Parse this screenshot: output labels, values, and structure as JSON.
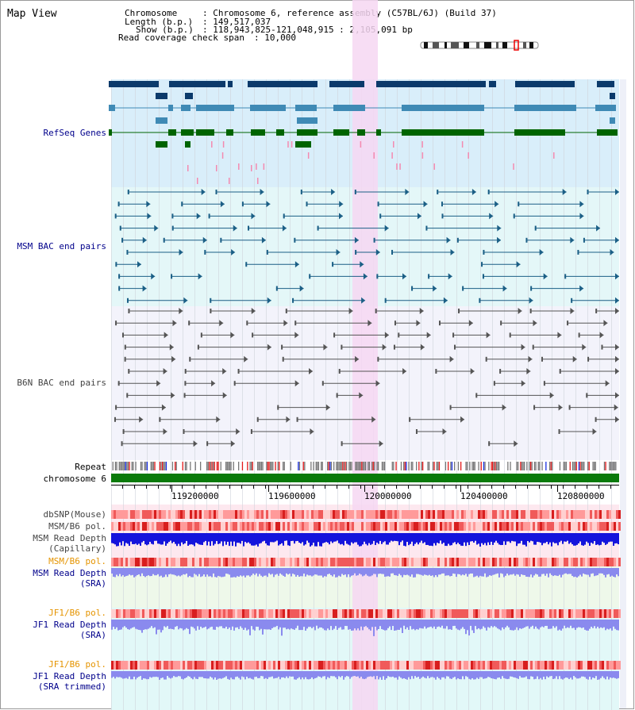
{
  "page": {
    "title": "Map View"
  },
  "header": {
    "chromosome_key": "Chromosome",
    "chromosome_value": ": Chromosome 6, reference assembly (C57BL/6J) (Build 37)",
    "length_key": "Length (b.p.)",
    "length_value": ": 149,517,037",
    "show_key": "Show (b.p.)",
    "show_value": ": 118,943,825-121,048,915 : 2,105,091 bp",
    "coverage_key": "Read coverage check span",
    "coverage_value": ": 10,000"
  },
  "tracks": {
    "refseq": {
      "label": "RefSeq Genes",
      "color": "#00008b"
    },
    "msm_bac": {
      "label": "MSM BAC end pairs",
      "color": "#00008b"
    },
    "b6n_bac": {
      "label": "B6N BAC end pairs",
      "color": "#444444"
    },
    "repeat": {
      "label": "Repeat",
      "color": "#000000"
    },
    "chromosome": {
      "label": "chromosome 6",
      "color": "#000000"
    },
    "dbsnp": {
      "label": "dbSNP(Mouse)",
      "color": "#444444"
    },
    "msm_b6_pol": {
      "label": "MSM/B6 pol.",
      "color": "#444444"
    },
    "msm_depth_cap": {
      "label1": "MSM Read Depth",
      "label2": "(Capillary)",
      "color": "#444444"
    },
    "msm_b6_pol_sra": {
      "label": "MSM/B6 pol.",
      "color": "#e59400"
    },
    "msm_depth_sra": {
      "label1": "MSM Read Depth",
      "label2": "(SRA)",
      "color": "#00008b"
    },
    "jf1_b6_pol": {
      "label": "JF1/B6 pol.",
      "color": "#e59400"
    },
    "jf1_depth_sra": {
      "label1": "JF1 Read Depth",
      "label2": "(SRA)",
      "color": "#00008b"
    },
    "jf1_b6_pol_2": {
      "label": "JF1/B6 pol.",
      "color": "#e59400"
    },
    "jf1_depth_trim": {
      "label1": "JF1 Read Depth",
      "label2": "(SRA trimmed)",
      "color": "#00008b"
    }
  },
  "axis": {
    "ticks": [
      "119200000",
      "119600000",
      "120000000",
      "120400000",
      "120800000"
    ]
  },
  "colors": {
    "refseq_bg": "#d9eefa",
    "msm_bg": "#e4f7f8",
    "highlight": "#f6d7f2",
    "gene_dark": "#0b3a6b",
    "gene_mid": "#3f8ab5",
    "gene_green": "#006400",
    "chromosome_bar": "#0a7a0a",
    "snp_red": "#e63333",
    "depth_blue": "#1414dc",
    "depth_light": "#8a8aee"
  }
}
